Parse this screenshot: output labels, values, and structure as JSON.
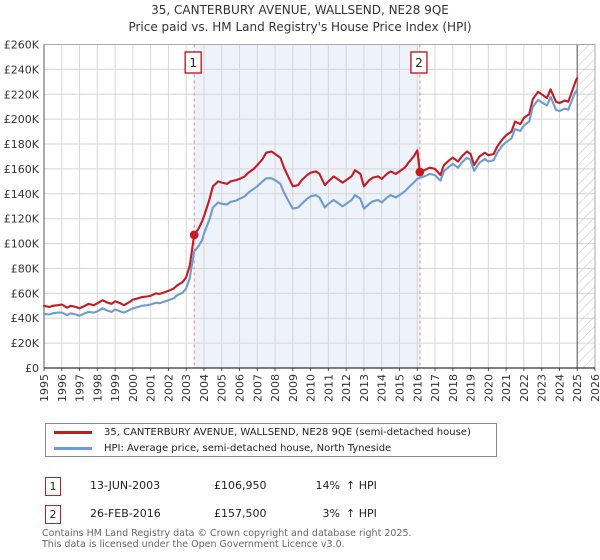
{
  "title": "35, CANTERBURY AVENUE, WALLSEND, NE28 9QE",
  "subtitle": "Price paid vs. HM Land Registry's House Price Index (HPI)",
  "chart_data": {
    "type": "line",
    "title": "35, CANTERBURY AVENUE, WALLSEND, NE28 9QE",
    "subtitle": "Price paid vs. HM Land Registry's House Price Index (HPI)",
    "units": "GBP thousands",
    "x_range": [
      1995,
      2026
    ],
    "y_range": [
      0,
      260
    ],
    "y_tick_step": 20,
    "grid": true,
    "legend_position": "bottom",
    "y_tick_labels": [
      "£0",
      "£20K",
      "£40K",
      "£60K",
      "£80K",
      "£100K",
      "£120K",
      "£140K",
      "£160K",
      "£180K",
      "£200K",
      "£220K",
      "£240K",
      "£260K"
    ],
    "x_ticks": [
      1995,
      1996,
      1997,
      1998,
      1999,
      2000,
      2001,
      2002,
      2003,
      2004,
      2005,
      2006,
      2007,
      2008,
      2009,
      2010,
      2011,
      2012,
      2013,
      2014,
      2015,
      2016,
      2017,
      2018,
      2019,
      2020,
      2021,
      2022,
      2023,
      2024,
      2025,
      2026
    ],
    "shaded_region": {
      "from": 2003.45,
      "to": 2016.15,
      "color": "#edf2fb"
    },
    "hatched_region": {
      "from": 2025.0,
      "to": 2026.0
    },
    "markers": [
      {
        "label": "1",
        "x": 2003.45,
        "y": 106.95
      },
      {
        "label": "2",
        "x": 2016.15,
        "y": 157.5
      }
    ],
    "series": [
      {
        "name": "35, CANTERBURY AVENUE, WALLSEND, NE28 9QE (semi-detached house)",
        "color": "#c41a22",
        "points": [
          [
            1995,
            50
          ],
          [
            1995.3,
            49
          ],
          [
            1995.5,
            50
          ],
          [
            1995.8,
            50.5
          ],
          [
            1996,
            51
          ],
          [
            1996.3,
            48.5
          ],
          [
            1996.5,
            50
          ],
          [
            1996.8,
            49
          ],
          [
            1997,
            48
          ],
          [
            1997.3,
            50
          ],
          [
            1997.5,
            51.5
          ],
          [
            1997.8,
            50.5
          ],
          [
            1998,
            52
          ],
          [
            1998.3,
            54.5
          ],
          [
            1998.5,
            53
          ],
          [
            1998.8,
            51.5
          ],
          [
            1999,
            53.5
          ],
          [
            1999.3,
            52
          ],
          [
            1999.5,
            50.5
          ],
          [
            1999.8,
            53
          ],
          [
            2000,
            55
          ],
          [
            2000.3,
            56
          ],
          [
            2000.5,
            57
          ],
          [
            2000.8,
            57.5
          ],
          [
            2001,
            58
          ],
          [
            2001.3,
            60
          ],
          [
            2001.5,
            59.5
          ],
          [
            2001.8,
            61
          ],
          [
            2002,
            62
          ],
          [
            2002.3,
            64
          ],
          [
            2002.5,
            66.5
          ],
          [
            2002.8,
            69
          ],
          [
            2003,
            73
          ],
          [
            2003.2,
            82
          ],
          [
            2003.45,
            106.95
          ],
          [
            2003.7,
            112
          ],
          [
            2003.9,
            118
          ],
          [
            2004,
            122
          ],
          [
            2004.3,
            135
          ],
          [
            2004.5,
            146
          ],
          [
            2004.8,
            150
          ],
          [
            2005,
            149
          ],
          [
            2005.3,
            148
          ],
          [
            2005.5,
            150
          ],
          [
            2005.8,
            151
          ],
          [
            2006,
            152
          ],
          [
            2006.3,
            154
          ],
          [
            2006.5,
            157
          ],
          [
            2006.8,
            160
          ],
          [
            2007,
            163
          ],
          [
            2007.3,
            168
          ],
          [
            2007.5,
            173
          ],
          [
            2007.8,
            174
          ],
          [
            2008,
            172
          ],
          [
            2008.3,
            169
          ],
          [
            2008.5,
            161
          ],
          [
            2008.8,
            152
          ],
          [
            2009,
            146
          ],
          [
            2009.3,
            147
          ],
          [
            2009.5,
            151
          ],
          [
            2009.8,
            155
          ],
          [
            2010,
            157
          ],
          [
            2010.3,
            158
          ],
          [
            2010.5,
            156
          ],
          [
            2010.8,
            147
          ],
          [
            2011,
            150
          ],
          [
            2011.3,
            154
          ],
          [
            2011.5,
            152
          ],
          [
            2011.8,
            149
          ],
          [
            2012,
            151
          ],
          [
            2012.3,
            154
          ],
          [
            2012.5,
            159
          ],
          [
            2012.8,
            156
          ],
          [
            2013,
            146
          ],
          [
            2013.3,
            151
          ],
          [
            2013.5,
            153
          ],
          [
            2013.8,
            154
          ],
          [
            2014,
            152
          ],
          [
            2014.3,
            156
          ],
          [
            2014.5,
            158
          ],
          [
            2014.8,
            156
          ],
          [
            2015,
            158
          ],
          [
            2015.3,
            161
          ],
          [
            2015.5,
            165
          ],
          [
            2015.8,
            170
          ],
          [
            2016,
            175
          ],
          [
            2016.15,
            157.5
          ],
          [
            2016.4,
            159
          ],
          [
            2016.7,
            161
          ],
          [
            2017,
            160
          ],
          [
            2017.3,
            155
          ],
          [
            2017.5,
            163
          ],
          [
            2017.8,
            167
          ],
          [
            2018,
            169
          ],
          [
            2018.3,
            166
          ],
          [
            2018.5,
            170
          ],
          [
            2018.8,
            174
          ],
          [
            2019,
            172
          ],
          [
            2019.2,
            163
          ],
          [
            2019.5,
            170
          ],
          [
            2019.8,
            173
          ],
          [
            2020,
            171
          ],
          [
            2020.3,
            172
          ],
          [
            2020.5,
            178
          ],
          [
            2020.8,
            184
          ],
          [
            2021,
            187
          ],
          [
            2021.3,
            190
          ],
          [
            2021.5,
            198
          ],
          [
            2021.8,
            196
          ],
          [
            2022,
            201
          ],
          [
            2022.3,
            204
          ],
          [
            2022.5,
            216
          ],
          [
            2022.8,
            222
          ],
          [
            2023,
            220
          ],
          [
            2023.3,
            217
          ],
          [
            2023.5,
            224
          ],
          [
            2023.8,
            214
          ],
          [
            2024,
            213
          ],
          [
            2024.3,
            215
          ],
          [
            2024.5,
            214
          ],
          [
            2024.8,
            226
          ],
          [
            2024.92,
            231
          ],
          [
            2025,
            233
          ]
        ]
      },
      {
        "name": "HPI: Average price, semi-detached house, North Tyneside",
        "color": "#6f9bd1",
        "points": [
          [
            1995,
            43.5
          ],
          [
            1995.3,
            43
          ],
          [
            1995.5,
            44
          ],
          [
            1995.8,
            44.5
          ],
          [
            1996,
            44.5
          ],
          [
            1996.3,
            42.5
          ],
          [
            1996.5,
            44
          ],
          [
            1996.8,
            43
          ],
          [
            1997,
            42
          ],
          [
            1997.3,
            44
          ],
          [
            1997.5,
            45
          ],
          [
            1997.8,
            44.5
          ],
          [
            1998,
            45.5
          ],
          [
            1998.3,
            48
          ],
          [
            1998.5,
            46.5
          ],
          [
            1998.8,
            45
          ],
          [
            1999,
            47
          ],
          [
            1999.3,
            45.5
          ],
          [
            1999.5,
            44.5
          ],
          [
            1999.8,
            46.5
          ],
          [
            2000,
            48
          ],
          [
            2000.3,
            49
          ],
          [
            2000.5,
            50
          ],
          [
            2000.8,
            50.5
          ],
          [
            2001,
            51
          ],
          [
            2001.3,
            52.5
          ],
          [
            2001.5,
            52
          ],
          [
            2001.8,
            53.5
          ],
          [
            2002,
            54.5
          ],
          [
            2002.3,
            56
          ],
          [
            2002.5,
            58.5
          ],
          [
            2002.8,
            60.5
          ],
          [
            2003,
            64
          ],
          [
            2003.2,
            72
          ],
          [
            2003.45,
            93.8
          ],
          [
            2003.7,
            98
          ],
          [
            2003.9,
            103
          ],
          [
            2004,
            108
          ],
          [
            2004.3,
            119
          ],
          [
            2004.5,
            129
          ],
          [
            2004.8,
            133
          ],
          [
            2005,
            132
          ],
          [
            2005.3,
            131.5
          ],
          [
            2005.5,
            133.5
          ],
          [
            2005.8,
            134.5
          ],
          [
            2006,
            136
          ],
          [
            2006.3,
            138
          ],
          [
            2006.5,
            141
          ],
          [
            2006.8,
            144
          ],
          [
            2007,
            146
          ],
          [
            2007.3,
            150
          ],
          [
            2007.5,
            152.5
          ],
          [
            2007.8,
            152.5
          ],
          [
            2008,
            151
          ],
          [
            2008.3,
            148
          ],
          [
            2008.5,
            141
          ],
          [
            2008.8,
            133
          ],
          [
            2009,
            128
          ],
          [
            2009.3,
            129
          ],
          [
            2009.5,
            132
          ],
          [
            2009.8,
            136
          ],
          [
            2010,
            138
          ],
          [
            2010.3,
            139
          ],
          [
            2010.5,
            137
          ],
          [
            2010.8,
            129
          ],
          [
            2011,
            132
          ],
          [
            2011.3,
            135
          ],
          [
            2011.5,
            133
          ],
          [
            2011.8,
            130
          ],
          [
            2012,
            132
          ],
          [
            2012.3,
            135
          ],
          [
            2012.5,
            139
          ],
          [
            2012.8,
            136
          ],
          [
            2013,
            128
          ],
          [
            2013.3,
            132
          ],
          [
            2013.5,
            134
          ],
          [
            2013.8,
            135
          ],
          [
            2014,
            133
          ],
          [
            2014.3,
            137
          ],
          [
            2014.5,
            139
          ],
          [
            2014.8,
            137
          ],
          [
            2015,
            139
          ],
          [
            2015.3,
            142
          ],
          [
            2015.5,
            145
          ],
          [
            2015.8,
            149
          ],
          [
            2016,
            152
          ],
          [
            2016.15,
            152.9
          ],
          [
            2016.4,
            154
          ],
          [
            2016.7,
            156
          ],
          [
            2017,
            155
          ],
          [
            2017.3,
            150.5
          ],
          [
            2017.5,
            158
          ],
          [
            2017.8,
            162
          ],
          [
            2018,
            164
          ],
          [
            2018.3,
            161
          ],
          [
            2018.5,
            165
          ],
          [
            2018.8,
            169
          ],
          [
            2019,
            167
          ],
          [
            2019.2,
            158.5
          ],
          [
            2019.5,
            165
          ],
          [
            2019.8,
            168
          ],
          [
            2020,
            166
          ],
          [
            2020.3,
            167
          ],
          [
            2020.5,
            173
          ],
          [
            2020.8,
            179
          ],
          [
            2021,
            181.5
          ],
          [
            2021.3,
            184.5
          ],
          [
            2021.5,
            192
          ],
          [
            2021.8,
            190.5
          ],
          [
            2022,
            195
          ],
          [
            2022.3,
            198
          ],
          [
            2022.5,
            210
          ],
          [
            2022.8,
            215.5
          ],
          [
            2023,
            213.5
          ],
          [
            2023.3,
            211
          ],
          [
            2023.5,
            218
          ],
          [
            2023.8,
            207.5
          ],
          [
            2024,
            206.5
          ],
          [
            2024.3,
            208.5
          ],
          [
            2024.5,
            207.5
          ],
          [
            2024.8,
            219
          ],
          [
            2025,
            224
          ]
        ]
      }
    ]
  },
  "legend": {
    "items": [
      {
        "label": "35, CANTERBURY AVENUE, WALLSEND, NE28 9QE (semi-detached house)",
        "color": "#c41a22"
      },
      {
        "label": "HPI: Average price, semi-detached house, North Tyneside",
        "color": "#6f9bd1"
      }
    ]
  },
  "annotations": [
    {
      "marker": "1",
      "date": "13-JUN-2003",
      "price": "£106,950",
      "pct": "14%",
      "suffix": "↑ HPI"
    },
    {
      "marker": "2",
      "date": "26-FEB-2016",
      "price": "£157,500",
      "pct": "3%",
      "suffix": "↑ HPI"
    }
  ],
  "footer": {
    "line1": "Contains HM Land Registry data © Crown copyright and database right 2025.",
    "line2": "This data is licensed under the Open Government Licence v3.0."
  },
  "colors": {
    "accent_red": "#c41a22",
    "hpi_blue": "#6f9bd1",
    "dashed_marker": "#ec8585",
    "shade": "#edf2fb",
    "grid": "#d6d6d6",
    "marker_box_border": "#bb2025"
  }
}
